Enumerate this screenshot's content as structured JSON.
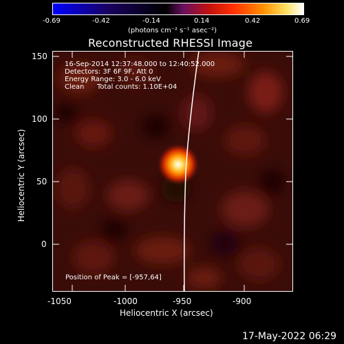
{
  "colorbar": {
    "ticks": [
      "-0.69",
      "-0.42",
      "-0.14",
      "0.14",
      "0.42",
      "0.69"
    ],
    "units": "(photons cm⁻² s⁻¹ asec⁻²)",
    "colors": [
      "#0000ff",
      "#000000",
      "#8a1a70",
      "#ff1a00",
      "#ff8c00",
      "#ffffff"
    ]
  },
  "title": "Reconstructed RHESSI Image",
  "annotations": {
    "time_range": "16-Sep-2014 12:37:48.000 to 12:40:52.000",
    "detectors": "Detectors: 3F 6F 9F, Att 0",
    "energy": "Energy Range: 3.0 - 6.0 keV",
    "method": "Clean",
    "counts": "Total counts: 1.10E+04",
    "peak": "Position of Peak = [-957,64]"
  },
  "axes": {
    "xlabel": "Heliocentric X (arcsec)",
    "ylabel": "Heliocentric Y (arcsec)",
    "xticks": [
      "-1050",
      "-1000",
      "-950",
      "-900"
    ],
    "yticks": [
      "150",
      "100",
      "50",
      "0"
    ],
    "xlim": [
      -1070,
      -870
    ],
    "ylim": [
      -37,
      155
    ]
  },
  "peak_position": [
    -957,
    64
  ],
  "footer": "17-May-2022 06:29"
}
